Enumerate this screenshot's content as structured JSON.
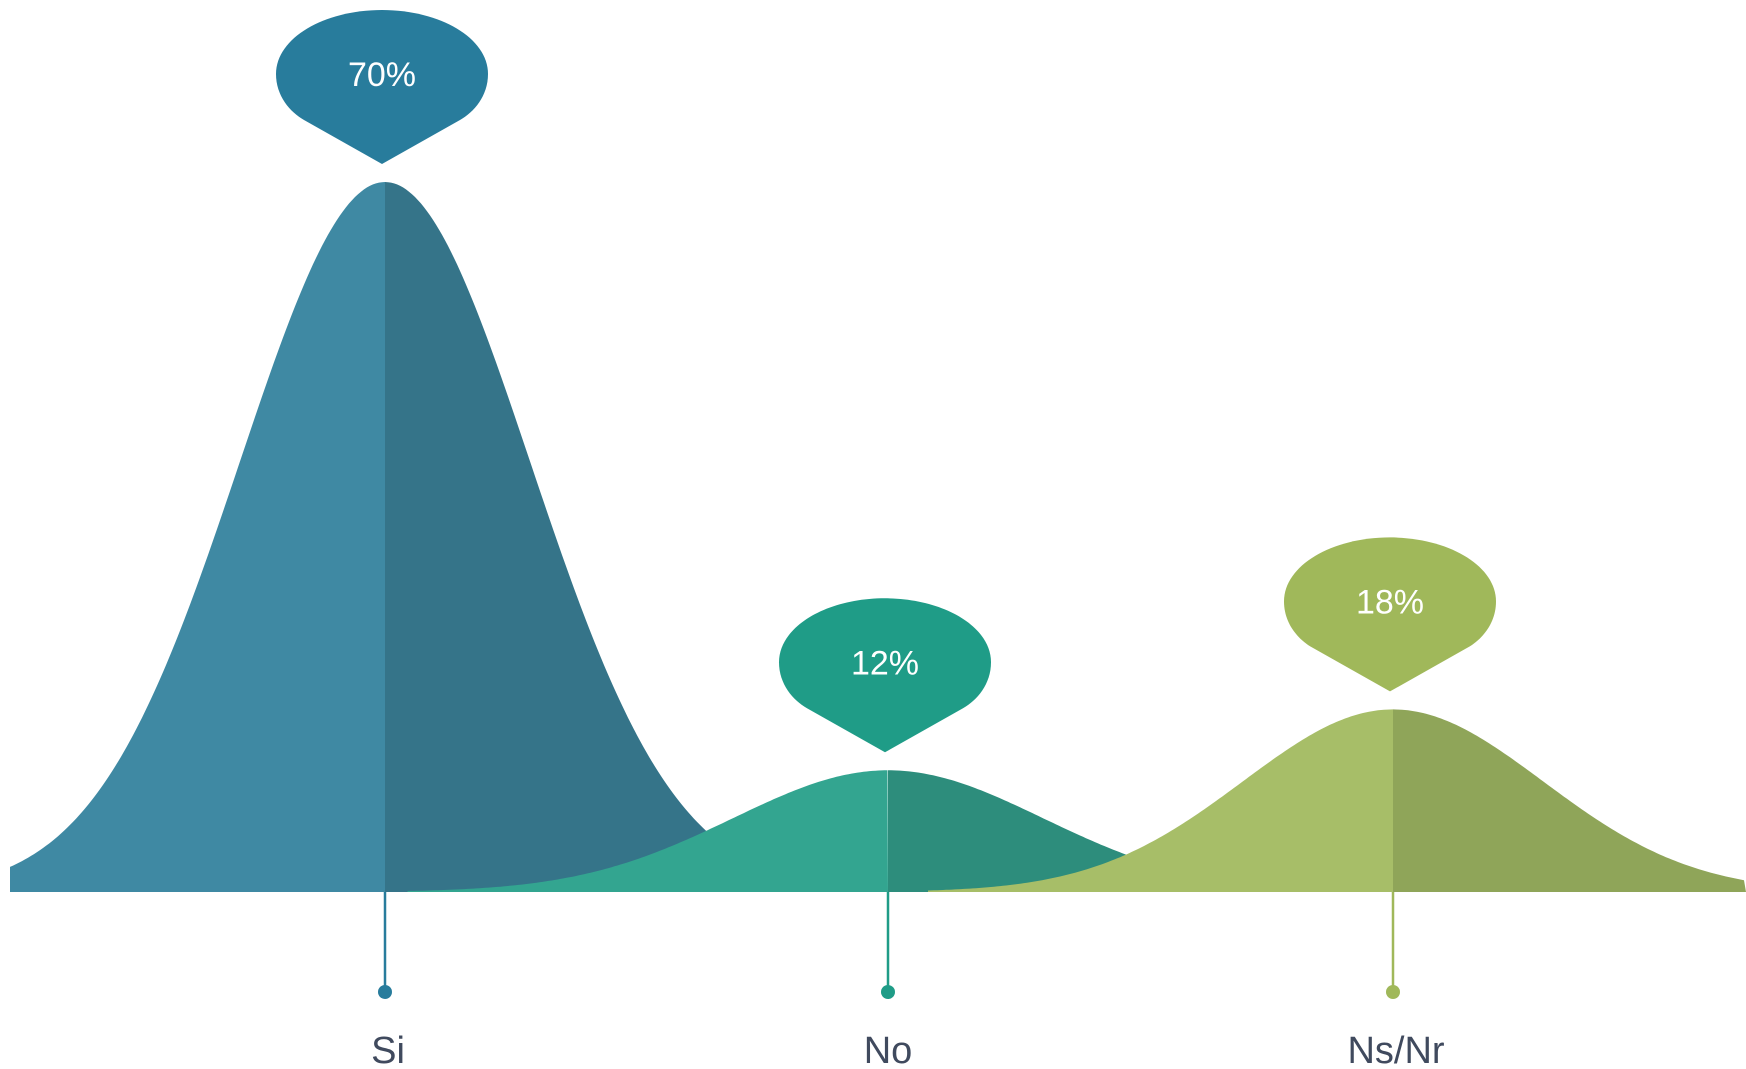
{
  "chart_data": {
    "type": "area",
    "title": "",
    "xlabel": "",
    "ylabel": "",
    "ylim": [
      0,
      70
    ],
    "grid": false,
    "legend": "none",
    "categories": [
      "Si",
      "No",
      "Ns/Nr"
    ],
    "values": [
      70,
      12,
      18
    ],
    "data_labels": [
      "70%",
      "12%",
      "18%"
    ],
    "colors": {
      "Si": {
        "light": "#3f89a3",
        "dark": "#357489",
        "marker": "#287c9c"
      },
      "No": {
        "light": "#33a590",
        "dark": "#2d8d7c",
        "marker": "#1f9c87"
      },
      "Ns/Nr": {
        "light": "#a7be68",
        "dark": "#8fa559",
        "marker": "#a0b85a"
      }
    }
  }
}
